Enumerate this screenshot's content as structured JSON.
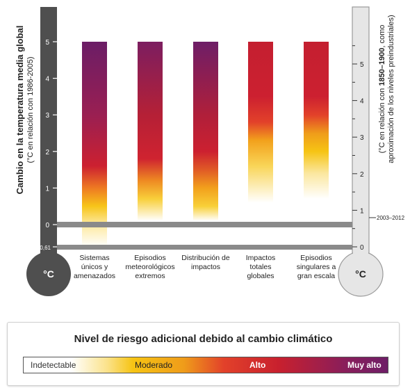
{
  "chart_data": {
    "type": "bar",
    "left_axis": {
      "label_main": "Cambio en la temperatura media global",
      "label_sub": "(°C en relación con 1986-2005)",
      "ticks": [
        "5",
        "4",
        "3",
        "2",
        "1",
        "0",
        "-0,61"
      ],
      "unit": "°C"
    },
    "right_axis": {
      "label_line1_prefix": "(°C en relación con ",
      "label_line1_bold": "1850–1900",
      "label_line1_suffix": ", como",
      "label_line2": "aproximación de los niveles preindustriales)",
      "ticks": [
        "5",
        "4",
        "3",
        "2",
        "1",
        "0"
      ],
      "marker_label": "2003–2012",
      "unit": "°C"
    },
    "categories": [
      {
        "lines": [
          "Sistemas",
          "únicos y",
          "amenazados"
        ]
      },
      {
        "lines": [
          "Episodios",
          "meteorológicos",
          "extremos"
        ]
      },
      {
        "lines": [
          "Distribución de",
          "impactos"
        ]
      },
      {
        "lines": [
          "Impactos",
          "totales",
          "globales"
        ]
      },
      {
        "lines": [
          "Episodios",
          "singulares a",
          "gran escala"
        ]
      }
    ],
    "ylim": [
      -0.61,
      5
    ],
    "bars": [
      {
        "from": -0.61,
        "to": 5,
        "stops": [
          [
            -0.61,
            "#ffffff"
          ],
          [
            0,
            "#fde9a0"
          ],
          [
            0.5,
            "#f7c519"
          ],
          [
            1.0,
            "#ee7a22"
          ],
          [
            1.6,
            "#cc2030"
          ],
          [
            3.0,
            "#9a1f52"
          ],
          [
            5.0,
            "#6b1d66"
          ]
        ]
      },
      {
        "from": -0.61,
        "to": 5,
        "stops": [
          [
            -0.61,
            "#ffffff"
          ],
          [
            0.1,
            "#ffffff"
          ],
          [
            0.7,
            "#f8cf3a"
          ],
          [
            1.2,
            "#ee8a22"
          ],
          [
            1.8,
            "#cf2330"
          ],
          [
            3.0,
            "#b52036"
          ],
          [
            5.0,
            "#7c1e60"
          ]
        ]
      },
      {
        "from": -0.61,
        "to": 5,
        "stops": [
          [
            -0.61,
            "#ffffff"
          ],
          [
            0.1,
            "#ffffff"
          ],
          [
            0.5,
            "#f8d038"
          ],
          [
            1.0,
            "#f2a01c"
          ],
          [
            1.5,
            "#e05a26"
          ],
          [
            2.0,
            "#cc2030"
          ],
          [
            3.0,
            "#b01f3a"
          ],
          [
            5.0,
            "#6e1e67"
          ]
        ]
      },
      {
        "from": -0.61,
        "to": 5,
        "stops": [
          [
            -0.61,
            "#ffffff"
          ],
          [
            0.6,
            "#ffffff"
          ],
          [
            1.6,
            "#f9d558"
          ],
          [
            2.3,
            "#f2a11c"
          ],
          [
            2.8,
            "#e2412a"
          ],
          [
            3.5,
            "#cc2030"
          ],
          [
            5.0,
            "#c41f30"
          ]
        ]
      },
      {
        "from": -0.61,
        "to": 5,
        "stops": [
          [
            -0.61,
            "#ffffff"
          ],
          [
            0.7,
            "#ffffff"
          ],
          [
            1.4,
            "#fbe7a0"
          ],
          [
            2.0,
            "#f6c414"
          ],
          [
            2.5,
            "#ef9c1a"
          ],
          [
            3.0,
            "#e2412a"
          ],
          [
            3.5,
            "#cc2030"
          ],
          [
            5.0,
            "#c41f30"
          ]
        ]
      }
    ]
  },
  "legend": {
    "title": "Nivel de riesgo adicional debido al cambio climático",
    "levels": [
      "Indetectable",
      "Moderado",
      "Alto",
      "Muy alto"
    ]
  }
}
